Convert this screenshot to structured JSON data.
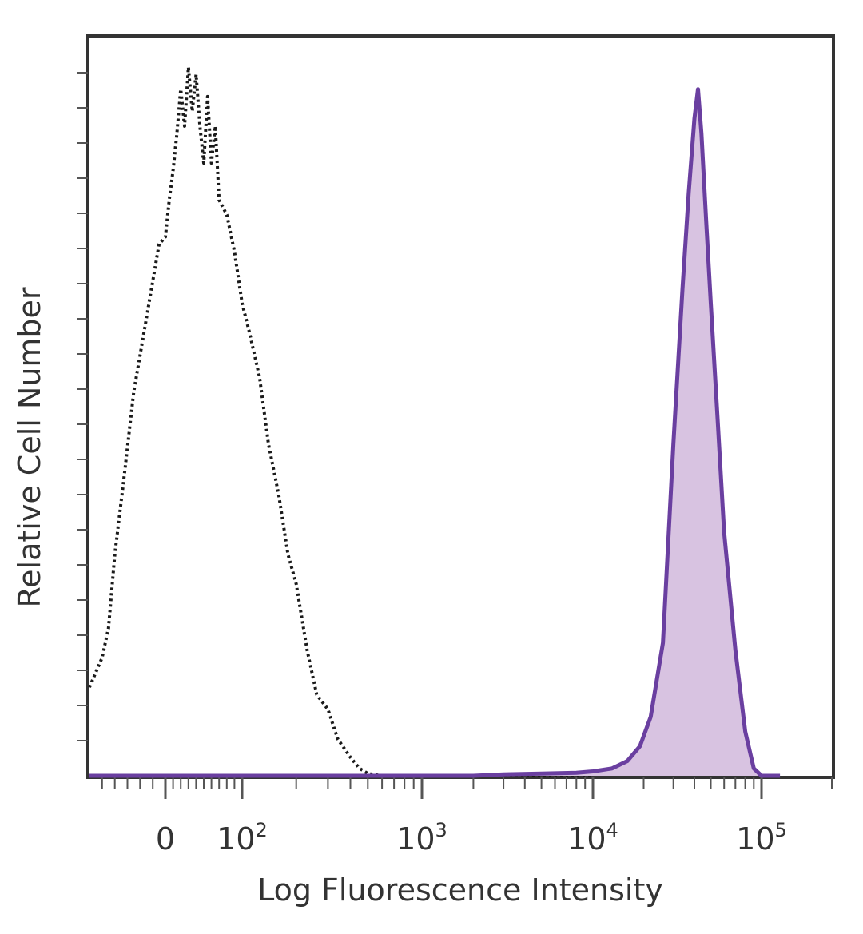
{
  "chart_data": {
    "type": "area",
    "xlabel": "Log Fluorescence Intensity",
    "ylabel": "Relative Cell Number",
    "x_scale": "biexponential",
    "xlim": [
      -60,
      200000
    ],
    "ylim": [
      0,
      100
    ],
    "grid": false,
    "legend": "none",
    "x_ticks": [
      {
        "value": 0,
        "base": "0",
        "exp": ""
      },
      {
        "value": 100,
        "base": "10",
        "exp": "2"
      },
      {
        "value": 1000,
        "base": "10",
        "exp": "3"
      },
      {
        "value": 10000,
        "base": "10",
        "exp": "4"
      },
      {
        "value": 100000,
        "base": "10",
        "exp": "5"
      }
    ],
    "series": [
      {
        "style": "dotted",
        "color": "#1a1a1a",
        "fill": false,
        "x": [
          -60,
          -55,
          -50,
          -45,
          -40,
          -33,
          -25,
          -15,
          -5,
          0,
          5,
          10,
          15,
          20,
          25,
          30,
          35,
          40,
          45,
          50,
          55,
          60,
          65,
          70,
          80,
          90,
          100,
          110,
          125,
          140,
          160,
          180,
          200,
          230,
          260,
          300,
          340,
          400,
          450,
          500,
          600,
          1000,
          2000,
          5000,
          10000
        ],
        "y": [
          12,
          14,
          16,
          20,
          30,
          40,
          52,
          62,
          72,
          73,
          78,
          82,
          87,
          93,
          88,
          96,
          90,
          95,
          88,
          83,
          92,
          83,
          88,
          78,
          76,
          71,
          64,
          60,
          54,
          45,
          38,
          30,
          26,
          17,
          11,
          9,
          5,
          2.5,
          1,
          0.3,
          0,
          0,
          0,
          0,
          0
        ]
      },
      {
        "style": "solid",
        "color": "#6a3fa0",
        "fill": true,
        "fill_color": "#d8c3e1",
        "x": [
          -60,
          200,
          500,
          1000,
          2000,
          3000,
          5000,
          8000,
          10000,
          13000,
          16000,
          19000,
          22000,
          26000,
          30000,
          34000,
          37000,
          40000,
          42000,
          44000,
          47000,
          50000,
          55000,
          60000,
          70000,
          80000,
          90000,
          100000,
          120000
        ],
        "y": [
          0,
          0,
          0,
          0,
          0,
          0.2,
          0.3,
          0.4,
          0.6,
          1,
          2,
          4,
          8,
          18,
          45,
          66,
          79,
          89,
          93,
          87,
          75,
          64,
          48,
          33,
          17,
          6,
          1,
          0,
          0
        ]
      }
    ]
  }
}
